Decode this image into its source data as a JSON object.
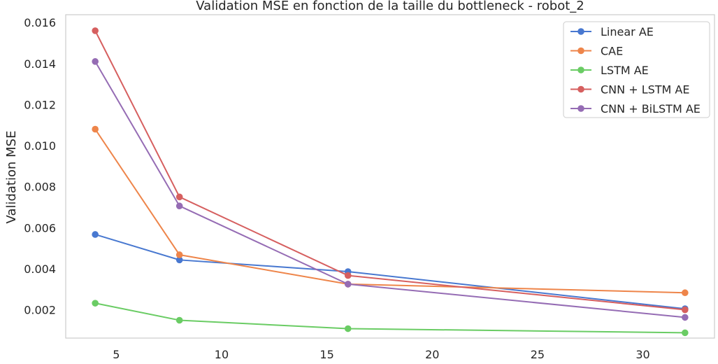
{
  "chart_data": {
    "type": "line",
    "title": "Validation MSE en fonction de la taille du bottleneck - robot_2",
    "xlabel": "",
    "ylabel": "Validation MSE",
    "x": [
      4,
      8,
      16,
      32
    ],
    "xlim": [
      2.6,
      33.4
    ],
    "ylim": [
      0.00062,
      0.01638
    ],
    "x_ticks": [
      5,
      10,
      15,
      20,
      25,
      30
    ],
    "y_ticks": [
      "0.002",
      "0.004",
      "0.006",
      "0.008",
      "0.010",
      "0.012",
      "0.014",
      "0.016"
    ],
    "grid": false,
    "legend_position": "upper right",
    "series": [
      {
        "name": "Linear AE",
        "color": "#4878d0",
        "values": [
          0.00567,
          0.00443,
          0.00386,
          0.00205
        ]
      },
      {
        "name": "CAE",
        "color": "#ee854a",
        "values": [
          0.0108,
          0.00468,
          0.00325,
          0.00283
        ]
      },
      {
        "name": "LSTM AE",
        "color": "#6acc64",
        "values": [
          0.00232,
          0.00149,
          0.00108,
          0.00088
        ]
      },
      {
        "name": "CNN + LSTM AE",
        "color": "#d65f5f",
        "values": [
          0.0156,
          0.0075,
          0.00367,
          0.002
        ]
      },
      {
        "name": "CNN + BiLSTM AE",
        "color": "#956cb4",
        "values": [
          0.0141,
          0.00706,
          0.00325,
          0.00163
        ]
      }
    ]
  }
}
